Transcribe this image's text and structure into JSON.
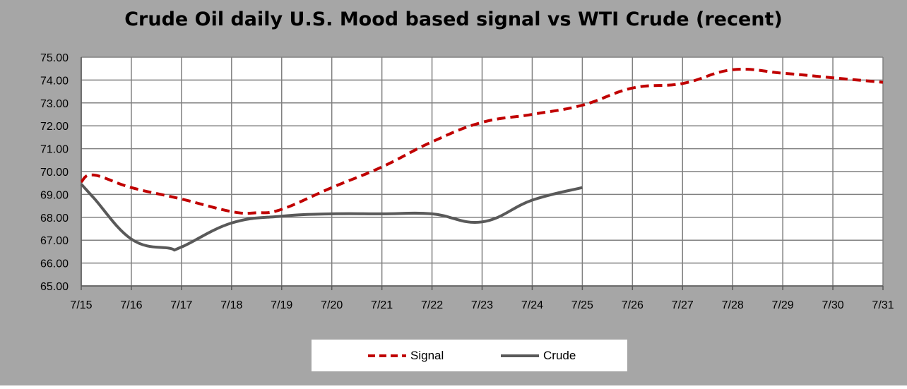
{
  "chart_data": {
    "type": "line",
    "title": "Crude Oil daily U.S. Mood based signal vs WTI Crude (recent)",
    "xlabel": "",
    "ylabel": "",
    "categories": [
      "7/15",
      "7/16",
      "7/17",
      "7/18",
      "7/19",
      "7/20",
      "7/21",
      "7/22",
      "7/23",
      "7/24",
      "7/25",
      "7/26",
      "7/27",
      "7/28",
      "7/29",
      "7/30",
      "7/31"
    ],
    "ylim": [
      65,
      75
    ],
    "yticks": [
      "65.00",
      "66.00",
      "67.00",
      "68.00",
      "69.00",
      "70.00",
      "71.00",
      "72.00",
      "73.00",
      "74.00",
      "75.00"
    ],
    "grid": true,
    "legend_position": "bottom",
    "series": [
      {
        "name": "Signal",
        "style": "dashed",
        "color": "#c00000",
        "x": [
          0,
          0.25,
          1,
          2,
          3,
          3.5,
          4,
          5,
          6,
          7,
          8,
          9,
          10,
          11,
          12,
          13,
          14,
          15,
          16
        ],
        "values": [
          69.55,
          69.85,
          69.3,
          68.8,
          68.25,
          68.2,
          68.35,
          69.3,
          70.2,
          71.3,
          72.15,
          72.5,
          72.9,
          73.65,
          73.85,
          74.45,
          74.3,
          74.1,
          73.9
        ]
      },
      {
        "name": "Crude",
        "style": "solid",
        "color": "#595959",
        "x": [
          0,
          0.25,
          1,
          1.75,
          2,
          3,
          4,
          5,
          6,
          7,
          8,
          9,
          10
        ],
        "values": [
          69.45,
          68.85,
          67.05,
          66.65,
          66.7,
          67.75,
          68.05,
          68.15,
          68.15,
          68.15,
          67.8,
          68.75,
          69.3
        ]
      }
    ]
  },
  "legend": {
    "signal_label": "Signal",
    "crude_label": "Crude"
  },
  "colors": {
    "background": "#a6a6a6",
    "plot_area": "#ffffff",
    "gridline": "#808080",
    "signal": "#c00000",
    "crude": "#595959"
  }
}
